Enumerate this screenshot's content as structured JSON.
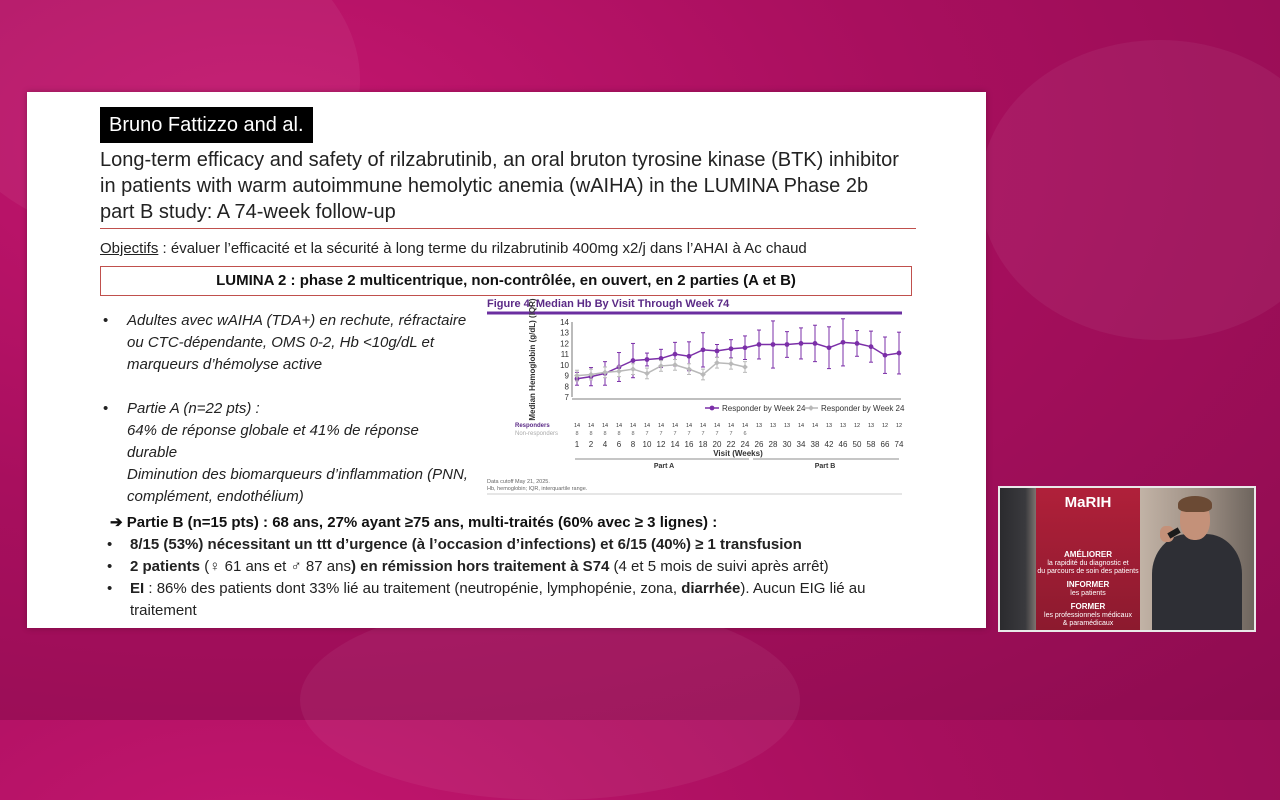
{
  "slide": {
    "authors": "Bruno Fattizzo and al.",
    "title": "Long-term efficacy and safety of rilzabrutinib, an oral bruton tyrosine kinase (BTK) inhibitor in patients with warm autoimmune hemolytic anemia (wAIHA) in the LUMINA Phase 2b part B study: A 74-week follow-up",
    "objectives_label": "Objectifs",
    "objectives_text": " : évaluer l’efficacité et la sécurité à long terme du rilzabrutinib 400mg x2/j dans l’AHAI à Ac chaud",
    "study_box": "LUMINA 2 : phase 2 multicentrique, non-contrôlée, en ouvert, en 2 parties (A et B)",
    "bullet1": "Adultes avec wAIHA (TDA+) en rechute, réfractaire ou CTC-dépendante, OMS 0-2, Hb <10g/dL et marqueurs d’hémolyse active",
    "bullet2_head": "Partie A (n=22 pts) :",
    "bullet2_line1": "64% de réponse globale et 41% de réponse durable",
    "bullet2_line2": "Diminution des biomarqueurs d’inflammation (PNN, complément, endothélium)",
    "partB_arrow": "➔",
    "partB_text": "Partie B (n=15 pts) : 68 ans, 27% ayant ≥75 ans, multi-traités (60% avec ≥ 3 lignes) :",
    "b1": "8/15 (53%) nécessitant un ttt d’urgence (à l’occasion d’infections) et 6/15 (40%) ≥ 1 transfusion",
    "b2_bold1": "2 patients",
    "b2_mid": " (♀ 61 ans et ♂ 87 ans",
    "b2_bold2": ") en rémission hors traitement à S74",
    "b2_tail": " (4 et 5 mois de suivi après arrêt)",
    "b3_bold": "EI",
    "b3_text": " : 86% des patients dont 33% lié au traitement (neutropénie, lymphopénie, zona, ",
    "b3_bold2": "diarrhée",
    "b3_tail": "). Aucun EIG lié au traitement"
  },
  "chart_data": {
    "type": "line",
    "title": "Figure 4. Median Hb By Visit Through Week 74",
    "xlabel": "Visit (Weeks)",
    "ylabel": "Median Hemoglobin (g/dL) (IQR)",
    "ylim": [
      7,
      14
    ],
    "yticks": [
      7,
      8,
      9,
      10,
      11,
      12,
      13,
      14
    ],
    "x": [
      "1",
      "2",
      "4",
      "6",
      "8",
      "10",
      "12",
      "14",
      "16",
      "18",
      "20",
      "22",
      "24",
      "26",
      "28",
      "30",
      "34",
      "38",
      "42",
      "46",
      "50",
      "58",
      "66",
      "74"
    ],
    "series": [
      {
        "name": "Responder by Week 24",
        "color": "#7b2fa8",
        "values": [
          8.7,
          8.9,
          9.2,
          9.8,
          10.4,
          10.5,
          10.6,
          11.0,
          10.8,
          11.4,
          11.3,
          11.5,
          11.6,
          11.9,
          11.9,
          11.9,
          12.0,
          12.0,
          11.6,
          12.1,
          12.0,
          11.7,
          10.9,
          11.1
        ]
      },
      {
        "name": "Responder by Week 24",
        "color": "#b9b9b9",
        "values": [
          9.0,
          9.1,
          9.3,
          9.4,
          9.6,
          9.2,
          9.9,
          10.0,
          9.6,
          9.1,
          10.2,
          10.1,
          9.8,
          null,
          null,
          null,
          null,
          null,
          null,
          null,
          null,
          null,
          null,
          null
        ]
      }
    ],
    "risk_table": {
      "responders_label": "Responders",
      "non_responders_label": "Non-responders",
      "responders": [
        "14",
        "14",
        "14",
        "14",
        "14",
        "14",
        "14",
        "14",
        "14",
        "14",
        "14",
        "14",
        "14",
        "13",
        "13",
        "13",
        "14",
        "14",
        "13",
        "13",
        "12",
        "13",
        "12",
        "12"
      ],
      "non_responders": [
        "8",
        "8",
        "8",
        "8",
        "8",
        "7",
        "7",
        "7",
        "7",
        "7",
        "7",
        "7",
        "6",
        "",
        "",
        "",
        "",
        "",
        "",
        "",
        "",
        "",
        "",
        ""
      ]
    },
    "parts": [
      "Part A",
      "Part B"
    ],
    "footnote1": "Data cutoff May 21, 2025.",
    "footnote2": "Hb, hemoglobin; IQR, interquartile range."
  },
  "camera": {
    "logo": "MaRIH",
    "line1": "AMÉLIORER",
    "line2": "la rapidité du diagnostic et",
    "line3": "du parcours de soin des patients",
    "line4": "INFORMER",
    "line5": "les patients",
    "line6": "FORMER",
    "line7": "les professionnels médicaux",
    "line8": "& paramédicaux"
  }
}
